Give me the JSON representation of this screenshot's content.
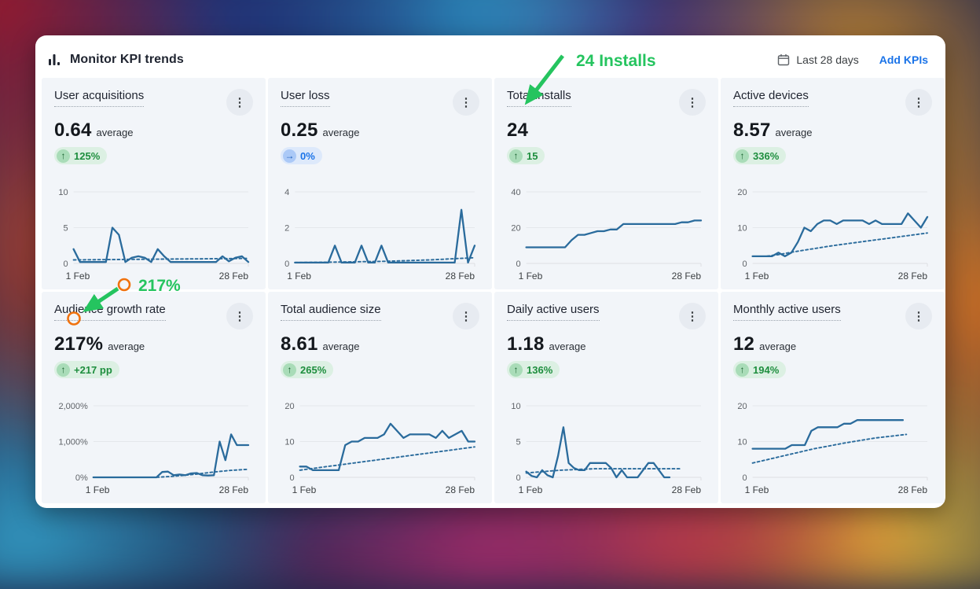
{
  "header": {
    "title": "Monitor KPI trends",
    "range_label": "Last 28 days",
    "add_kpis_label": "Add KPIs"
  },
  "annotations": {
    "installs_callout": "24 Installs",
    "growth_callout": "217%",
    "green": "#25c45f",
    "orange": "#f0720e"
  },
  "colors": {
    "line": "#2a6b9c",
    "grid": "#e4e7eb",
    "axis_label": "#5f6368",
    "link_blue": "#1a73e8",
    "badge_green_text": "#1e8e3e",
    "card_bg": "#f2f5f9"
  },
  "cards": [
    {
      "title": "User acquisitions",
      "value": "0.64",
      "unit": "average",
      "badge": {
        "arrow": "↑",
        "text": "125%",
        "style": "green"
      },
      "chart": {
        "type": "line",
        "ymax": 10,
        "yticks": [
          "10",
          "5",
          "0"
        ],
        "xstart": "1 Feb",
        "xend": "28 Feb",
        "solid": {
          "span": 1,
          "points": [
            2,
            0.2,
            0.2,
            0.2,
            0.2,
            0.2,
            5,
            4,
            0.2,
            0.8,
            1,
            0.8,
            0.2,
            2,
            1,
            0.2,
            0.2,
            0.2,
            0.2,
            0.2,
            0.2,
            0.2,
            0.2,
            1,
            0.3,
            0.8,
            1,
            0.2
          ]
        },
        "dashed": {
          "span": 1,
          "points": [
            0.5,
            0.55,
            0.6,
            0.65,
            0.7
          ]
        }
      }
    },
    {
      "title": "User loss",
      "value": "0.25",
      "unit": "average",
      "badge": {
        "arrow": "→",
        "text": "0%",
        "style": "blue"
      },
      "chart": {
        "type": "line",
        "ymax": 4,
        "yticks": [
          "4",
          "2",
          "0"
        ],
        "xstart": "1 Feb",
        "xend": "28 Feb",
        "solid": {
          "span": 1,
          "points": [
            0.05,
            0.05,
            0.05,
            0.05,
            0.05,
            0.05,
            1,
            0.05,
            0.05,
            0.05,
            1,
            0.05,
            0.05,
            1,
            0.05,
            0.05,
            0.05,
            0.05,
            0.05,
            0.05,
            0.05,
            0.05,
            0.05,
            0.05,
            0.05,
            3,
            0.05,
            1
          ]
        },
        "dashed": {
          "span": 1,
          "points": [
            0.05,
            0.08,
            0.12,
            0.2,
            0.32
          ]
        }
      }
    },
    {
      "title": "Total installs",
      "value": "24",
      "unit": "",
      "badge": {
        "arrow": "↑",
        "text": "15",
        "style": "green"
      },
      "chart": {
        "type": "line",
        "ymax": 40,
        "yticks": [
          "40",
          "20",
          "0"
        ],
        "xstart": "1 Feb",
        "xend": "28 Feb",
        "solid": {
          "span": 1,
          "points": [
            9,
            9,
            9,
            9,
            9,
            9,
            9,
            13,
            16,
            16,
            17,
            18,
            18,
            19,
            19,
            22,
            22,
            22,
            22,
            22,
            22,
            22,
            22,
            22,
            23,
            23,
            24,
            24
          ]
        },
        "dashed": null
      }
    },
    {
      "title": "Active devices",
      "value": "8.57",
      "unit": "average",
      "badge": {
        "arrow": "↑",
        "text": "336%",
        "style": "green"
      },
      "chart": {
        "type": "line",
        "ymax": 20,
        "yticks": [
          "20",
          "10",
          "0"
        ],
        "xstart": "1 Feb",
        "xend": "28 Feb",
        "solid": {
          "span": 1,
          "points": [
            2,
            2,
            2,
            2,
            3,
            2,
            3,
            6,
            10,
            9,
            11,
            12,
            12,
            11,
            12,
            12,
            12,
            12,
            11,
            12,
            11,
            11,
            11,
            11,
            14,
            12,
            10,
            13
          ]
        },
        "dashed": {
          "span": 1,
          "points": [
            2,
            2,
            2.5,
            3.2,
            3.8,
            4.4,
            5,
            5.5,
            6,
            6.5,
            7,
            7.5,
            8,
            8.5
          ]
        }
      }
    },
    {
      "title": "Audience growth rate",
      "value": "217%",
      "unit": "average",
      "badge": {
        "arrow": "↑",
        "text": "+217 pp",
        "style": "green"
      },
      "chart": {
        "type": "line",
        "ymax": 2000,
        "yticks": [
          "2,000%",
          "1,000%",
          "0%"
        ],
        "xstart": "1 Feb",
        "xend": "28 Feb",
        "solid": {
          "span": 1,
          "points": [
            0,
            0,
            0,
            0,
            0,
            0,
            0,
            0,
            0,
            0,
            0,
            0,
            150,
            160,
            60,
            80,
            60,
            110,
            120,
            60,
            50,
            60,
            1000,
            480,
            1200,
            900,
            900,
            900
          ]
        },
        "dashed": {
          "span": 1,
          "points": [
            0,
            0,
            0,
            0,
            0,
            0,
            0,
            0,
            0,
            0,
            0,
            0,
            10,
            20,
            30,
            45,
            60,
            75,
            90,
            110,
            130,
            150,
            165,
            180,
            195,
            205,
            215,
            225
          ]
        }
      }
    },
    {
      "title": "Total audience size",
      "value": "8.61",
      "unit": "average",
      "badge": {
        "arrow": "↑",
        "text": "265%",
        "style": "green"
      },
      "chart": {
        "type": "line",
        "ymax": 20,
        "yticks": [
          "20",
          "10",
          "0"
        ],
        "xstart": "1 Feb",
        "xend": "28 Feb",
        "solid": {
          "span": 1,
          "points": [
            3,
            3,
            2,
            2,
            2,
            2,
            2,
            9,
            10,
            10,
            11,
            11,
            11,
            12,
            15,
            13,
            11,
            12,
            12,
            12,
            12,
            11,
            13,
            11,
            12,
            13,
            10,
            10
          ]
        },
        "dashed": {
          "span": 1,
          "points": [
            2,
            2.5,
            3,
            3.5,
            4,
            4.5,
            5,
            5.5,
            6,
            6.5,
            7,
            7.5,
            8,
            8.5
          ]
        }
      }
    },
    {
      "title": "Daily active users",
      "value": "1.18",
      "unit": "average",
      "badge": {
        "arrow": "↑",
        "text": "136%",
        "style": "green"
      },
      "chart": {
        "type": "line",
        "ymax": 10,
        "yticks": [
          "10",
          "5",
          "0"
        ],
        "xstart": "1 Feb",
        "xend": "28 Feb",
        "solid": {
          "span": 0.82,
          "points": [
            0.8,
            0.2,
            0,
            1,
            0.3,
            0,
            3,
            7,
            2,
            1.3,
            1,
            1,
            2,
            2,
            2,
            2,
            1.3,
            0,
            1,
            0,
            0,
            0,
            1,
            2,
            2,
            1,
            0,
            0
          ]
        },
        "dashed": {
          "span": 0.88,
          "points": [
            0.6,
            0.8,
            1,
            1.1,
            1.2,
            1.2,
            1.2,
            1.2,
            1.2,
            1.2
          ]
        }
      }
    },
    {
      "title": "Monthly active users",
      "value": "12",
      "unit": "average",
      "badge": {
        "arrow": "↑",
        "text": "194%",
        "style": "green"
      },
      "chart": {
        "type": "line",
        "ymax": 20,
        "yticks": [
          "20",
          "10",
          "0"
        ],
        "xstart": "1 Feb",
        "xend": "28 Feb",
        "solid": {
          "span": 0.86,
          "points": [
            8,
            8,
            8,
            8,
            8,
            8,
            9,
            9,
            9,
            13,
            14,
            14,
            14,
            14,
            15,
            15,
            16,
            16,
            16,
            16,
            16,
            16,
            16,
            16
          ]
        },
        "dashed": {
          "span": 0.88,
          "points": [
            4,
            5,
            6,
            7,
            8,
            8.8,
            9.6,
            10.3,
            11,
            11.5,
            12
          ]
        }
      }
    }
  ]
}
